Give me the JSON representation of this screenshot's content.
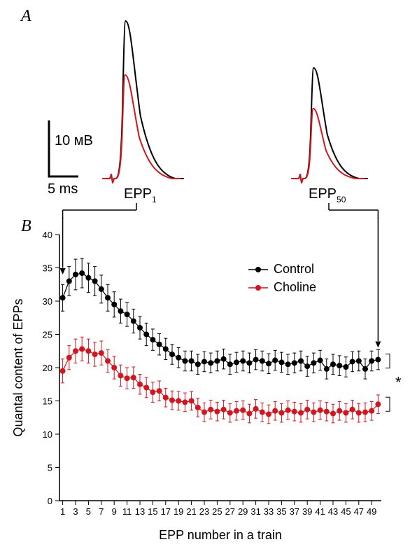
{
  "panelA": {
    "label": "A",
    "scalebar_y": "10 мВ",
    "scalebar_x": "5 ms",
    "epp1_label": "EPP",
    "epp1_sub": "1",
    "epp50_label": "EPP",
    "epp50_sub": "50",
    "peak": {
      "control_color": "#000000",
      "choline_color": "#d6141d",
      "line_width": 2
    }
  },
  "panelB": {
    "label": "B",
    "title": "",
    "xlabel": "EPP number in a train",
    "ylabel": "Quantal content of EPPs",
    "xlim": [
      0.5,
      50.5
    ],
    "ylim": [
      0,
      40
    ],
    "ytick_step": 5,
    "xtick_step": 2,
    "tick_fontsize": 13,
    "label_fontsize": 18,
    "background_color": "#ffffff",
    "marker_size": 3.5,
    "line_width": 1.2,
    "error_width": 1,
    "legend": {
      "control": "Control",
      "choline": "Choline"
    },
    "control": {
      "color": "#000000",
      "y": [
        30.5,
        33.0,
        34.0,
        34.2,
        33.5,
        33.0,
        31.8,
        30.5,
        29.5,
        28.5,
        28.0,
        27.0,
        26.0,
        25.0,
        24.2,
        23.5,
        22.8,
        22.0,
        21.5,
        21.0,
        21.0,
        20.5,
        20.9,
        20.7,
        21.0,
        21.3,
        20.5,
        20.8,
        21.0,
        20.7,
        21.2,
        21.0,
        20.6,
        21.1,
        20.8,
        20.5,
        20.7,
        21.0,
        20.2,
        20.7,
        21.1,
        19.8,
        20.5,
        20.3,
        20.1,
        20.9,
        21.0,
        19.8,
        21.0,
        21.2
      ],
      "err": [
        2.0,
        2.2,
        2.3,
        2.2,
        2.2,
        2.2,
        2.1,
        2.0,
        1.9,
        1.8,
        1.8,
        1.8,
        1.7,
        1.7,
        1.6,
        1.6,
        1.6,
        1.5,
        1.5,
        1.5,
        1.5,
        1.5,
        1.5,
        1.5,
        1.5,
        1.5,
        1.5,
        1.5,
        1.5,
        1.5,
        1.5,
        1.5,
        1.5,
        1.5,
        1.5,
        1.5,
        1.5,
        1.5,
        1.5,
        1.5,
        1.5,
        1.5,
        1.5,
        1.5,
        1.5,
        1.5,
        1.5,
        1.5,
        1.5,
        1.5
      ]
    },
    "choline": {
      "color": "#d6141d",
      "y": [
        19.5,
        21.5,
        22.5,
        22.8,
        22.5,
        22.0,
        22.2,
        21.0,
        20.0,
        18.8,
        18.4,
        18.5,
        17.5,
        17.0,
        16.3,
        16.5,
        15.5,
        15.1,
        15.0,
        14.8,
        15.0,
        14.0,
        13.3,
        13.7,
        13.4,
        13.7,
        13.2,
        13.5,
        13.6,
        13.1,
        13.8,
        13.3,
        13.0,
        13.5,
        13.2,
        13.6,
        13.4,
        13.2,
        13.7,
        13.3,
        13.6,
        13.4,
        13.1,
        13.5,
        13.2,
        13.7,
        13.2,
        13.3,
        13.5,
        14.5
      ],
      "err": [
        1.8,
        1.8,
        1.8,
        1.8,
        1.8,
        1.8,
        1.8,
        1.7,
        1.7,
        1.6,
        1.6,
        1.6,
        1.5,
        1.5,
        1.5,
        1.5,
        1.4,
        1.4,
        1.4,
        1.4,
        1.4,
        1.4,
        1.4,
        1.4,
        1.4,
        1.4,
        1.4,
        1.4,
        1.4,
        1.4,
        1.4,
        1.4,
        1.4,
        1.4,
        1.4,
        1.4,
        1.4,
        1.4,
        1.4,
        1.4,
        1.4,
        1.4,
        1.4,
        1.4,
        1.4,
        1.4,
        1.4,
        1.4,
        1.4,
        1.4
      ]
    },
    "significance": "*"
  }
}
